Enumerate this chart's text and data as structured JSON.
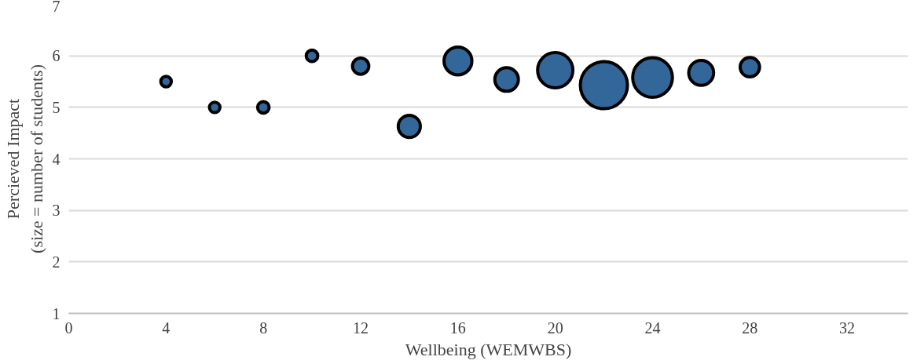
{
  "chart_data": {
    "type": "bubble",
    "xlabel": "Wellbeing (WEMWBS)",
    "ylabel": "Percieved Impact\n(size = number of students)",
    "x": [
      4,
      6,
      8,
      10,
      12,
      14,
      16,
      18,
      20,
      22,
      24,
      26,
      28
    ],
    "values": [
      5.5,
      5.0,
      5.0,
      6.0,
      5.8,
      4.63,
      5.9,
      5.54,
      5.72,
      5.43,
      5.58,
      5.67,
      5.78
    ],
    "sizes": [
      0.05,
      0.05,
      0.06,
      0.06,
      0.12,
      0.22,
      0.35,
      0.25,
      0.56,
      1,
      0.71,
      0.28,
      0.17
    ],
    "color": "#336699",
    "xlim": [
      0,
      34.5
    ],
    "xticks": [
      0,
      4,
      8,
      12,
      16,
      20,
      24,
      28,
      32
    ],
    "ylim": [
      1,
      7
    ],
    "yticks": [
      1,
      2,
      3,
      4,
      5,
      6,
      7
    ],
    "grid": "y"
  }
}
